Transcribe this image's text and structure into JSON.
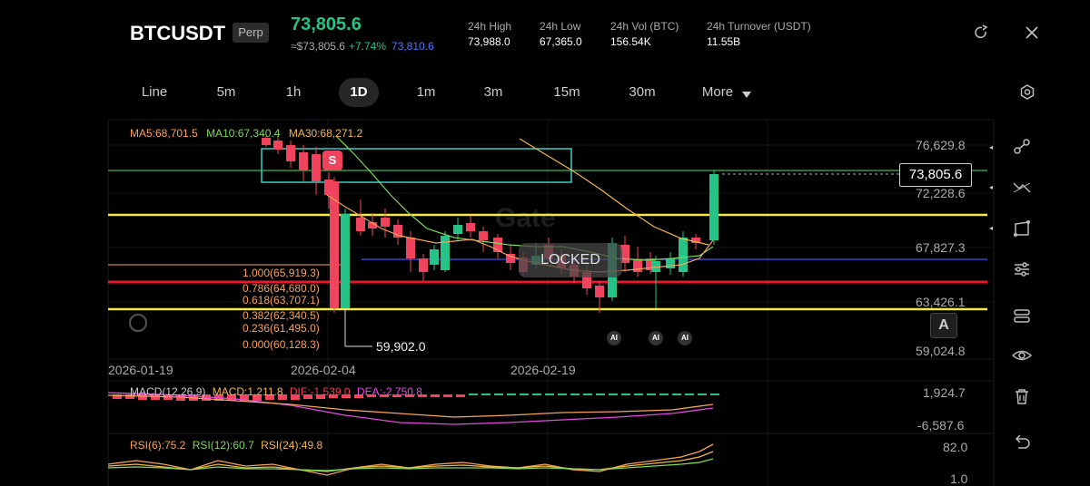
{
  "header": {
    "symbol": "BTCUSDT",
    "badge": "Perp",
    "price": "73,805.6",
    "fiat": "≈$73,805.6",
    "change": "+7.74%",
    "mark_price": "73,810.6",
    "stats": [
      {
        "label": "24h High",
        "value": "73,988.0"
      },
      {
        "label": "24h Low",
        "value": "67,365.0"
      },
      {
        "label": "24h Vol (BTC)",
        "value": "156.54K"
      },
      {
        "label": "24h Turnover (USDT)",
        "value": "11.55B"
      }
    ],
    "icons": {
      "refresh": "refresh-icon",
      "close": "close-icon"
    }
  },
  "timeframes": [
    "Line",
    "5m",
    "1h",
    "1D",
    "1m",
    "3m",
    "15m",
    "30m",
    "More"
  ],
  "active_timeframe": "1D",
  "main_chart": {
    "ma_legend": {
      "ma5": "MA5:68,701.5",
      "ma10": "MA10:67,340.4",
      "ma30": "MA30:68,271.2"
    },
    "price_axis": [
      "76,629.8",
      "72,228.6",
      "67,827.3",
      "63,426.1",
      "59,024.8"
    ],
    "last_price": "73,805.6",
    "low_marker": "59,902.0",
    "date_axis": [
      "2026-01-19",
      "2026-02-04",
      "2026-02-19"
    ],
    "fib_levels": [
      "1.000(65,919.3)",
      "0.786(64,680.0)",
      "0.618(63,707.1)",
      "0.382(62,340.5)",
      "0.236(61,495.0)",
      "0.000(60,128.3)"
    ],
    "locked_label": "LOCKED",
    "sell_badge": "S",
    "ai_badge": "AI",
    "a_button": "A",
    "watermark": "Gate"
  },
  "macd": {
    "legend": {
      "name": "MACD(12,26,9)",
      "macd": "MACD:1,211.8",
      "dif": "DIF:-1,539.0",
      "dea": "DEA:-2,750.8"
    },
    "axis": [
      "1,924.7",
      "-6,587.6"
    ]
  },
  "rsi": {
    "legend": {
      "rsi6": "RSI(6):75.2",
      "rsi12": "RSI(12):60.7",
      "rsi24": "RSI(24):49.8"
    },
    "axis": [
      "82.0",
      "1.0"
    ]
  },
  "colors": {
    "up": "#25c388",
    "down": "#f0435d",
    "ma5": "#f6a35a",
    "ma10": "#7ed957",
    "ma30": "#f2b84b",
    "yellow_line": "#f5e94a",
    "red_line": "#e8192c",
    "blue_line": "#3b53ff",
    "green_line": "#3fb950"
  },
  "sidebar_icons": [
    "indicator-icon",
    "trendline-icon",
    "shape-icon",
    "settings-sliders-icon",
    "layers-icon",
    "eye-icon",
    "trash-icon",
    "undo-icon"
  ],
  "settings_icon": "settings-icon"
}
